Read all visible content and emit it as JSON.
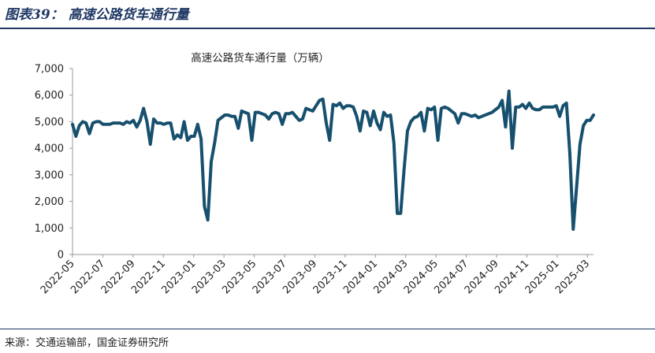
{
  "header": {
    "figure_title": "图表39：  高速公路货车通行量",
    "source": "来源：交通运输部，国金证券研究所"
  },
  "chart_data": {
    "type": "line",
    "title": "高速公路货车通行量（万辆）",
    "xlabel": "",
    "ylabel": "",
    "ylim": [
      0,
      7000
    ],
    "y_ticks": [
      "0",
      "1,000",
      "2,000",
      "3,000",
      "4,000",
      "5,000",
      "6,000",
      "7,000"
    ],
    "x_ticks": [
      "2022-05",
      "2022-07",
      "2022-09",
      "2022-11",
      "2023-01",
      "2023-03",
      "2023-05",
      "2023-07",
      "2023-09",
      "2023-11",
      "2024-01",
      "2024-03",
      "2024-05",
      "2024-07",
      "2024-09",
      "2024-11",
      "2025-01",
      "2025-03"
    ],
    "grid": false,
    "legend": "none",
    "line_color": "#17506e",
    "series": [
      {
        "values": [
          4900,
          4450,
          4850,
          5000,
          4950,
          4550,
          4950,
          5000,
          5000,
          4900,
          4900,
          4900,
          4950,
          4950,
          4950,
          4900,
          5000,
          4950,
          5050,
          4800,
          5050,
          5500,
          5000,
          4150,
          5100,
          4950,
          4950,
          4900,
          4950,
          4950,
          4350,
          4500,
          4400,
          5000,
          4300,
          4450,
          4450,
          4900,
          4350,
          1800,
          1300,
          3500,
          4200,
          5050,
          5150,
          5250,
          5250,
          5200,
          5200,
          4750,
          5400,
          5350,
          5300,
          4300,
          5350,
          5350,
          5300,
          5250,
          5100,
          5300,
          5350,
          5300,
          4900,
          5300,
          5300,
          5350,
          5200,
          5050,
          5100,
          5500,
          5450,
          5400,
          5600,
          5800,
          5850,
          4950,
          4300,
          5650,
          5600,
          5700,
          5500,
          5600,
          5600,
          5550,
          5200,
          4650,
          5400,
          5350,
          4850,
          5400,
          4950,
          4700,
          5350,
          5200,
          5250,
          4200,
          1550,
          1550,
          3200,
          4650,
          5000,
          5150,
          5200,
          5350,
          4650,
          5500,
          5450,
          5550,
          4300,
          5500,
          5550,
          5500,
          5400,
          5300,
          4950,
          5300,
          5300,
          5250,
          5200,
          5250,
          5150,
          5200,
          5250,
          5300,
          5350,
          5450,
          5550,
          5800,
          4800,
          6150,
          4000,
          5550,
          5550,
          5650,
          5500,
          5700,
          5500,
          5450,
          5450,
          5550,
          5550,
          5550,
          5550,
          5600,
          5200,
          5600,
          5700,
          3800,
          950,
          2550,
          4150,
          4850,
          5050,
          5050,
          5250
        ]
      }
    ]
  }
}
